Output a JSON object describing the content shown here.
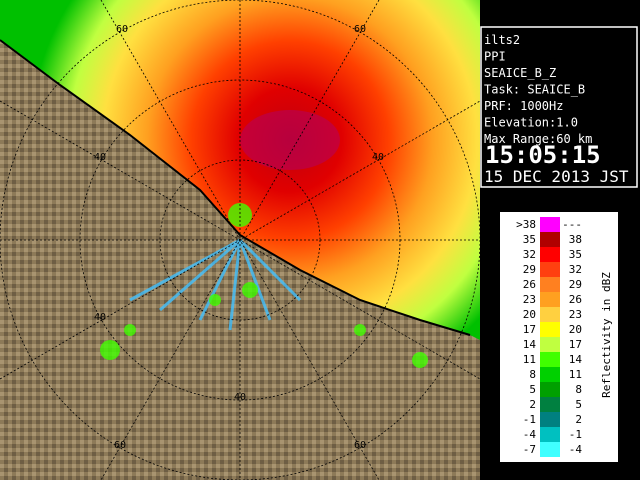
{
  "info": {
    "lines": [
      "ilts2",
      "PPI",
      "SEAICE_B_Z",
      "Task: SEAICE_B",
      "PRF: 1000Hz",
      "Elevation:1.0",
      "Max Range:60 km"
    ],
    "time": "15:05:15",
    "date": "15 DEC 2013 JST"
  },
  "legend": {
    "title": "Reflectivity in dBZ",
    "rows": [
      [
        ">38",
        "---"
      ],
      [
        "35",
        "38"
      ],
      [
        "32",
        "35"
      ],
      [
        "29",
        "32"
      ],
      [
        "26",
        "29"
      ],
      [
        "23",
        "26"
      ],
      [
        "20",
        "23"
      ],
      [
        "17",
        "20"
      ],
      [
        "14",
        "17"
      ],
      [
        "11",
        "14"
      ],
      [
        "8",
        "11"
      ],
      [
        "5",
        "8"
      ],
      [
        "2",
        "5"
      ],
      [
        "-1",
        "2"
      ],
      [
        "-4",
        "-1"
      ],
      [
        "-7",
        "-4"
      ]
    ],
    "colors": [
      "#ff00ff",
      "#b00000",
      "#ff0000",
      "#ff4010",
      "#ff8020",
      "#ffa020",
      "#ffd040",
      "#ffff00",
      "#c0ff40",
      "#40ff00",
      "#00d000",
      "#00a000",
      "#008040",
      "#008080",
      "#00c0c0",
      "#40ffff"
    ]
  },
  "range_labels": [
    "60",
    "60",
    "40",
    "40",
    "40",
    "40",
    "60",
    "60"
  ]
}
